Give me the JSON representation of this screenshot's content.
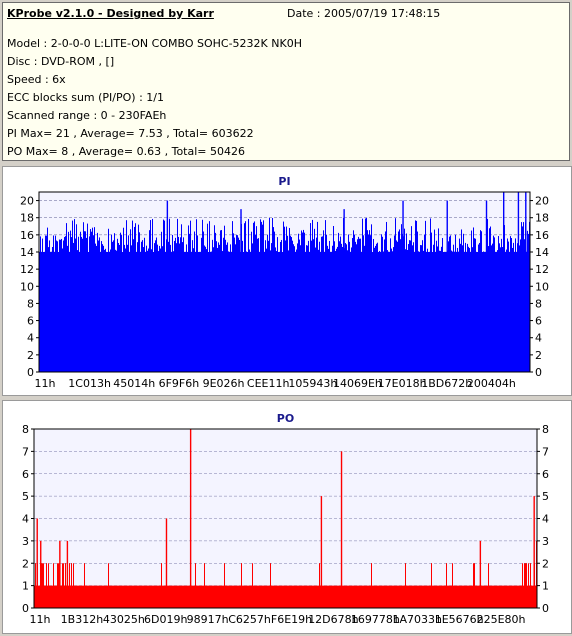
{
  "info": {
    "title": "KProbe v2.1.0 - Designed by Karr",
    "date": "Date : 2005/07/19 17:48:15",
    "lines": [
      "Model : 2-0-0-0 L:LITE-ON COMBO SOHC-5232K NK0H",
      "Disc : DVD-ROM ,  []",
      "Speed : 6x",
      "ECC blocks sum (PI/PO) : 1/1",
      "Scanned range : 0 - 230FAEh",
      "PI Max= 21 , Average= 7.53 , Total= 603622",
      "PO Max= 8 , Average= 0.63 , Total= 50426"
    ]
  },
  "chart_data": [
    {
      "type": "bar",
      "title": "PI",
      "color": "#0000ff",
      "ylim": [
        0,
        21
      ],
      "yticks": [
        0,
        2,
        4,
        6,
        8,
        10,
        12,
        14,
        16,
        18,
        20
      ],
      "xticks": [
        "11h",
        "1C013h",
        "45014h",
        "6F9F6h",
        "9E026h",
        "CEE11h",
        "105943h",
        "14069Eh",
        "17E018h",
        "1BD672h",
        "200404h"
      ],
      "grid": true,
      "baseline": 14,
      "typical_peak": 16,
      "max": 21,
      "spikes": [
        {
          "pos": 0.26,
          "value": 20
        },
        {
          "pos": 0.41,
          "value": 19
        },
        {
          "pos": 0.62,
          "value": 19
        },
        {
          "pos": 0.74,
          "value": 20
        },
        {
          "pos": 0.83,
          "value": 20
        },
        {
          "pos": 0.91,
          "value": 20
        },
        {
          "pos": 0.945,
          "value": 21
        },
        {
          "pos": 0.975,
          "value": 21
        },
        {
          "pos": 0.99,
          "value": 21
        }
      ]
    },
    {
      "type": "bar",
      "title": "PO",
      "color": "#ff0000",
      "ylim": [
        0,
        8
      ],
      "yticks": [
        0,
        1,
        2,
        3,
        4,
        5,
        6,
        7,
        8
      ],
      "xticks": [
        "11h",
        "1B312h",
        "43025h",
        "6D019h",
        "98917h",
        "C6257h",
        "F6E19h",
        "12D678h",
        "169778h",
        "1A7033h",
        "1E5676h",
        "225E80h"
      ],
      "grid": true,
      "baseline": 1,
      "max": 8,
      "spikes": [
        {
          "pos": 0.005,
          "value": 4
        },
        {
          "pos": 0.012,
          "value": 3
        },
        {
          "pos": 0.05,
          "value": 3
        },
        {
          "pos": 0.065,
          "value": 3
        },
        {
          "pos": 0.262,
          "value": 4
        },
        {
          "pos": 0.31,
          "value": 8
        },
        {
          "pos": 0.57,
          "value": 5
        },
        {
          "pos": 0.61,
          "value": 7
        },
        {
          "pos": 0.886,
          "value": 3
        },
        {
          "pos": 0.993,
          "value": 5
        },
        {
          "pos": 0.998,
          "value": 3
        }
      ]
    }
  ]
}
